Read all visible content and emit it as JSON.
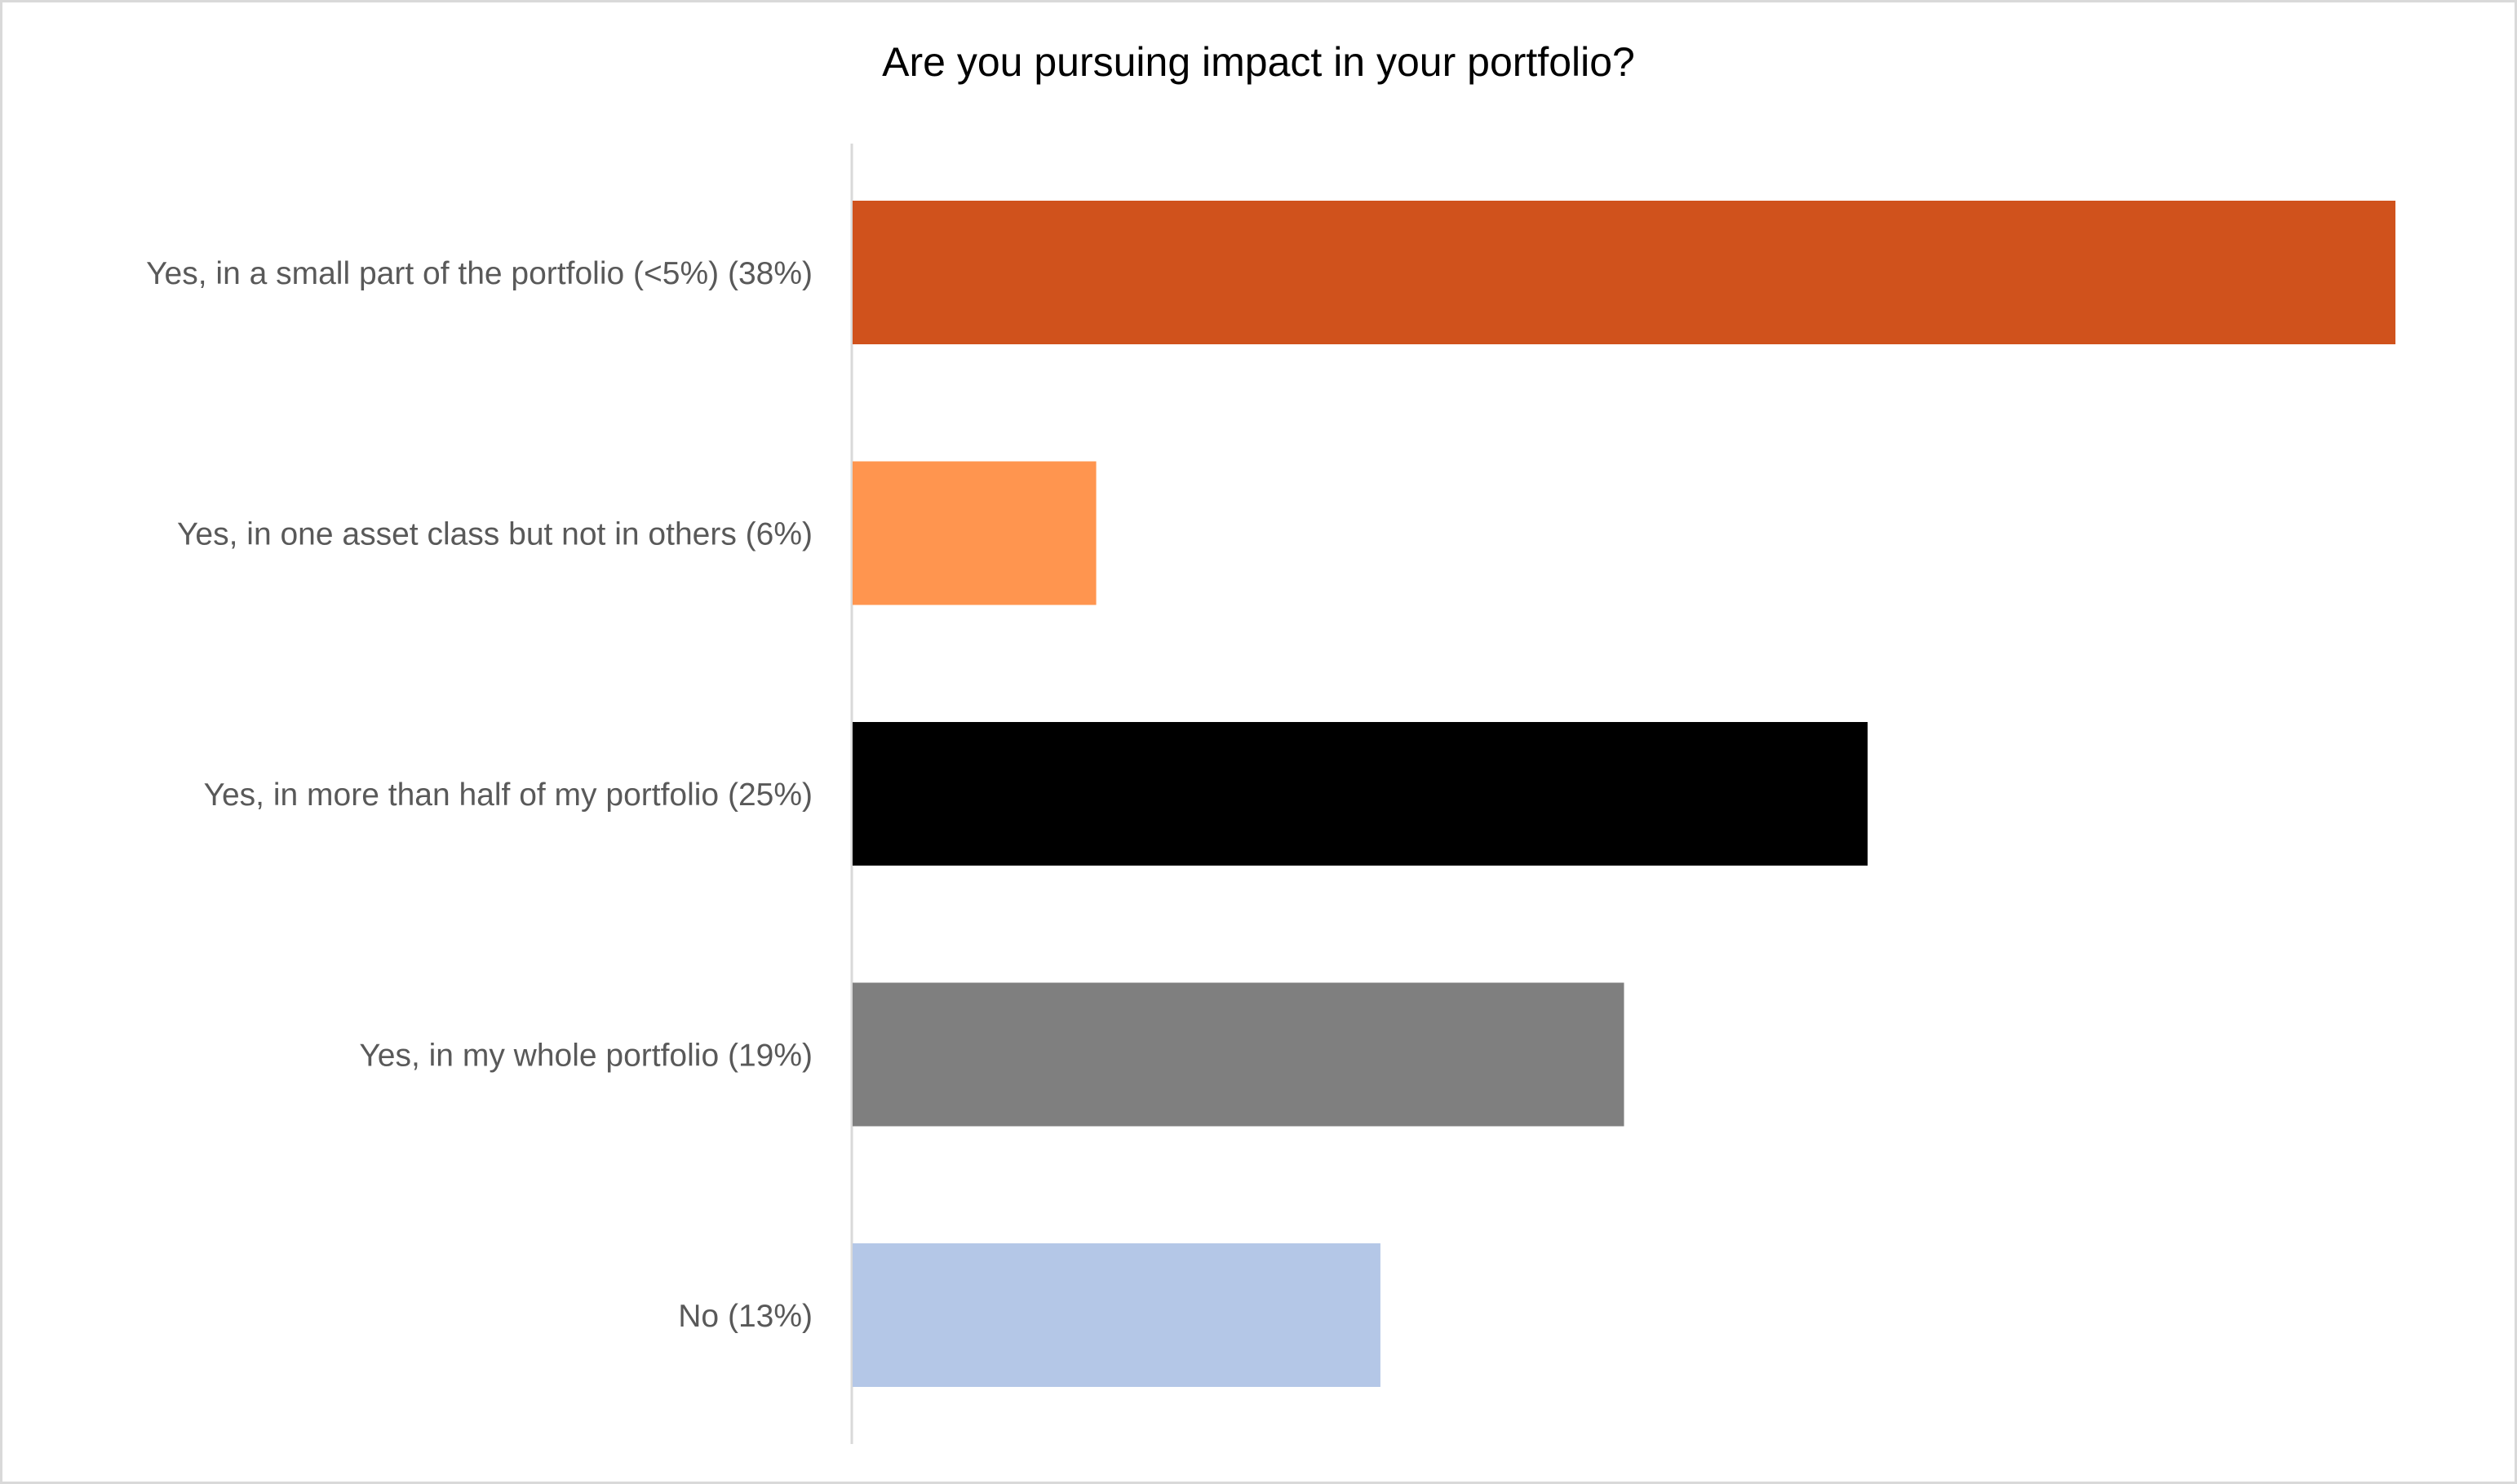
{
  "chart_data": {
    "type": "bar",
    "orientation": "horizontal",
    "title": "Are you pursuing impact in your portfolio?",
    "categories": [
      "Yes, in a small part of the portfolio (<5%) (38%)",
      "Yes, in one asset class but not in others (6%)",
      "Yes, in more than half of my portfolio (25%)",
      "Yes, in my whole portfolio (19%)",
      "No (13%)"
    ],
    "values": [
      38,
      6,
      25,
      19,
      13
    ],
    "colors": [
      "#D0521C",
      "#FF954F",
      "#000000",
      "#7F7F7F",
      "#B4C7E7"
    ],
    "xlabel": "",
    "ylabel": "",
    "grid": false,
    "legend": "none"
  }
}
